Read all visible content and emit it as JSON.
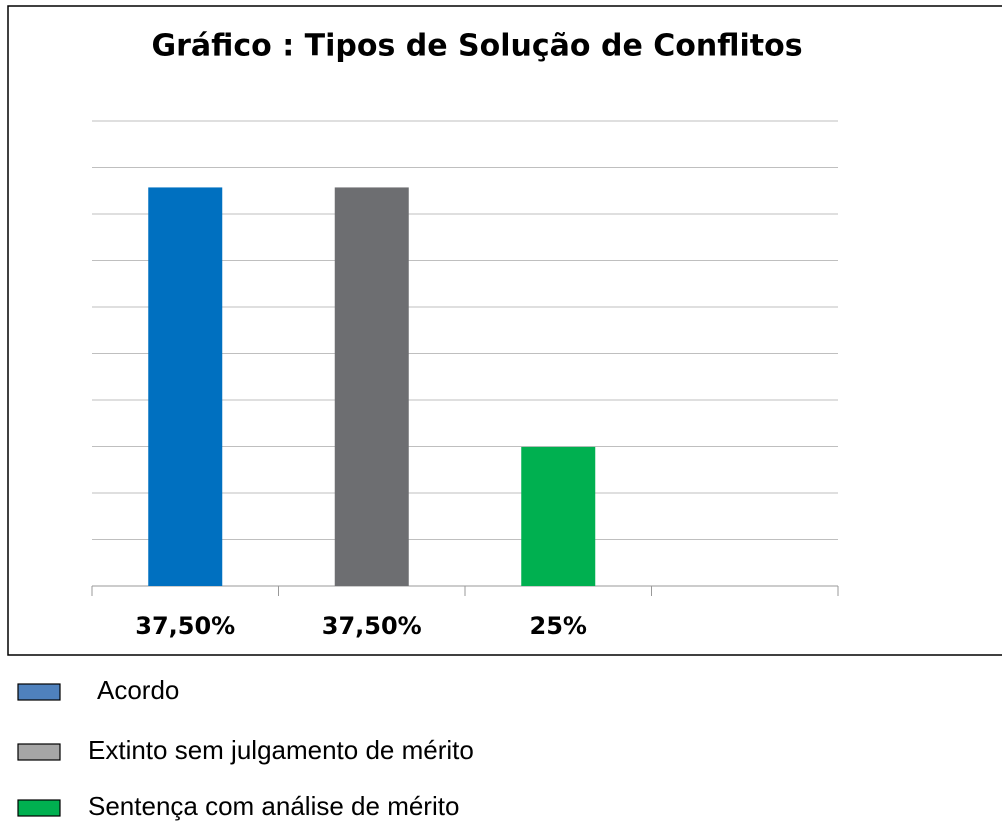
{
  "chart_data": {
    "type": "bar",
    "title": "Gráfico : Tipos de Solução de Conflitos",
    "categories": [
      "Acordo",
      "Extinto sem julgamento de mérito",
      "Sentença com análise de mérito",
      null
    ],
    "values": [
      37.5,
      37.5,
      25,
      null
    ],
    "value_labels": [
      "37,50%",
      "37,50%",
      "25%",
      null
    ],
    "colors": [
      "#0070c0",
      "#6d6e71",
      "#00b050",
      null
    ],
    "legend_colors": [
      "#4f81bd",
      "#a6a6a6",
      "#00b050"
    ],
    "ylim": [
      18.3,
      40.7
    ],
    "grid": true
  }
}
